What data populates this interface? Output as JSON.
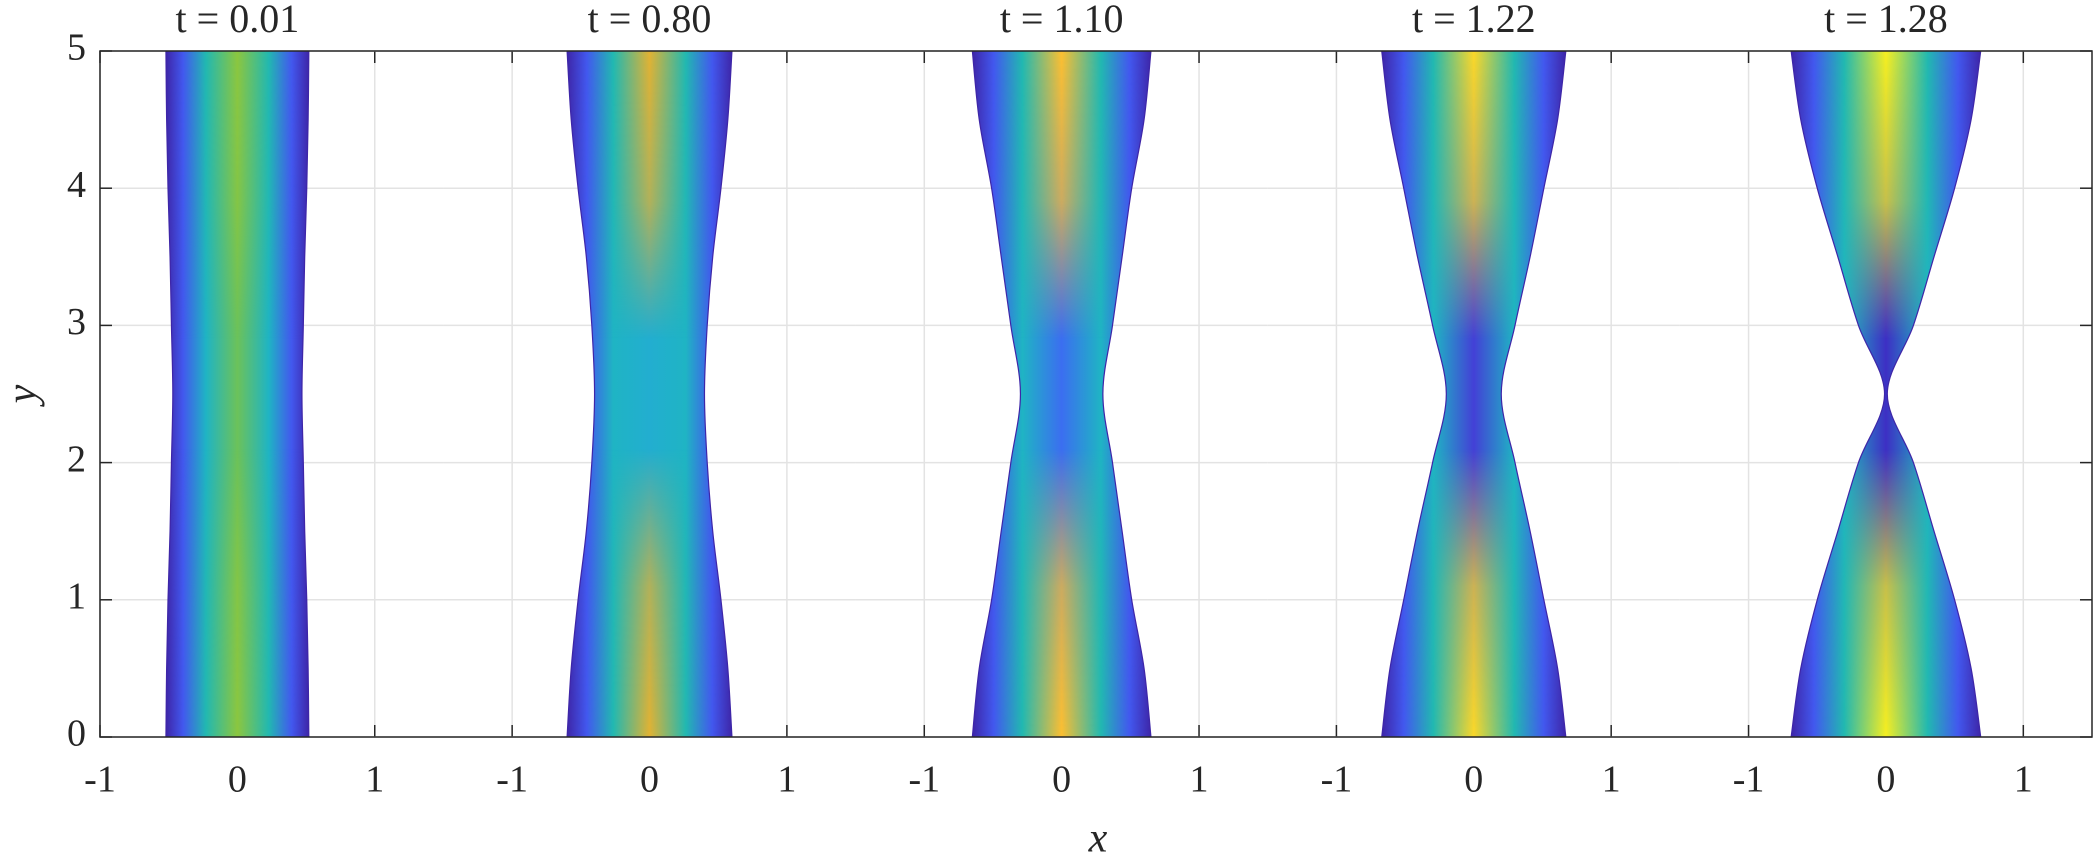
{
  "xlabel": "x",
  "ylabel": "y",
  "chart_data": [
    {
      "type": "profile",
      "title": "t = 0.01",
      "xlim": [
        -1,
        1.5
      ],
      "xticks": [
        -1,
        0,
        1
      ],
      "ylim": [
        0,
        5
      ],
      "yticks": [
        0,
        1,
        2,
        3,
        4,
        5
      ],
      "grid": true,
      "y": [
        0,
        0.5,
        1,
        1.5,
        2,
        2.5,
        3,
        3.5,
        4,
        4.5,
        5
      ],
      "halfwidth": [
        0.52,
        0.515,
        0.505,
        0.49,
        0.48,
        0.47,
        0.48,
        0.49,
        0.505,
        0.515,
        0.52
      ],
      "edge_color": "#3e26a8",
      "end_color": "#8cc63f",
      "waist_color": "#6cc25a"
    },
    {
      "type": "profile",
      "title": "t = 0.80",
      "xlim": [
        -1.5,
        1.5
      ],
      "xticks": [
        -1,
        0,
        1
      ],
      "ylim": [
        0,
        5
      ],
      "yticks": [
        0,
        1,
        2,
        3,
        4,
        5
      ],
      "grid": true,
      "y": [
        0,
        0.5,
        1,
        1.5,
        2,
        2.5,
        3,
        3.5,
        4,
        4.5,
        5
      ],
      "halfwidth": [
        0.6,
        0.57,
        0.52,
        0.46,
        0.42,
        0.4,
        0.42,
        0.46,
        0.52,
        0.57,
        0.6
      ],
      "edge_color": "#3e26a8",
      "end_color": "#e2b232",
      "waist_color": "#22aed0"
    },
    {
      "type": "profile",
      "title": "t = 1.10",
      "xlim": [
        -1.5,
        1.5
      ],
      "xticks": [
        -1,
        0,
        1
      ],
      "ylim": [
        0,
        5
      ],
      "yticks": [
        0,
        1,
        2,
        3,
        4,
        5
      ],
      "grid": true,
      "y": [
        0,
        0.5,
        1,
        1.5,
        2,
        2.5,
        3,
        3.5,
        4,
        4.5,
        5
      ],
      "halfwidth": [
        0.65,
        0.6,
        0.51,
        0.44,
        0.37,
        0.3,
        0.37,
        0.44,
        0.51,
        0.6,
        0.65
      ],
      "edge_color": "#3e26a8",
      "end_color": "#fdbf30",
      "waist_color": "#3b6ef0"
    },
    {
      "type": "profile",
      "title": "t = 1.22",
      "xlim": [
        -1.5,
        1.5
      ],
      "xticks": [
        -1,
        0,
        1
      ],
      "ylim": [
        0,
        5
      ],
      "yticks": [
        0,
        1,
        2,
        3,
        4,
        5
      ],
      "grid": true,
      "y": [
        0,
        0.5,
        1,
        1.5,
        2,
        2.5,
        3,
        3.5,
        4,
        4.5,
        5
      ],
      "halfwidth": [
        0.67,
        0.61,
        0.51,
        0.41,
        0.3,
        0.2,
        0.3,
        0.41,
        0.51,
        0.61,
        0.67
      ],
      "edge_color": "#3e26a8",
      "end_color": "#fbd828",
      "waist_color": "#4340d6"
    },
    {
      "type": "profile",
      "title": "t = 1.28",
      "xlim": [
        -1.5,
        1.5
      ],
      "xticks": [
        -1,
        0,
        1
      ],
      "ylim": [
        0,
        5
      ],
      "yticks": [
        0,
        1,
        2,
        3,
        4,
        5
      ],
      "grid": true,
      "y": [
        0,
        0.5,
        1,
        1.5,
        2,
        2.5,
        3,
        3.5,
        4,
        4.5,
        5
      ],
      "halfwidth": [
        0.69,
        0.62,
        0.5,
        0.35,
        0.2,
        0.01,
        0.2,
        0.35,
        0.5,
        0.62,
        0.69
      ],
      "edge_color": "#3e26a8",
      "end_color": "#f6f020",
      "waist_color": "#3d2fc4"
    }
  ]
}
